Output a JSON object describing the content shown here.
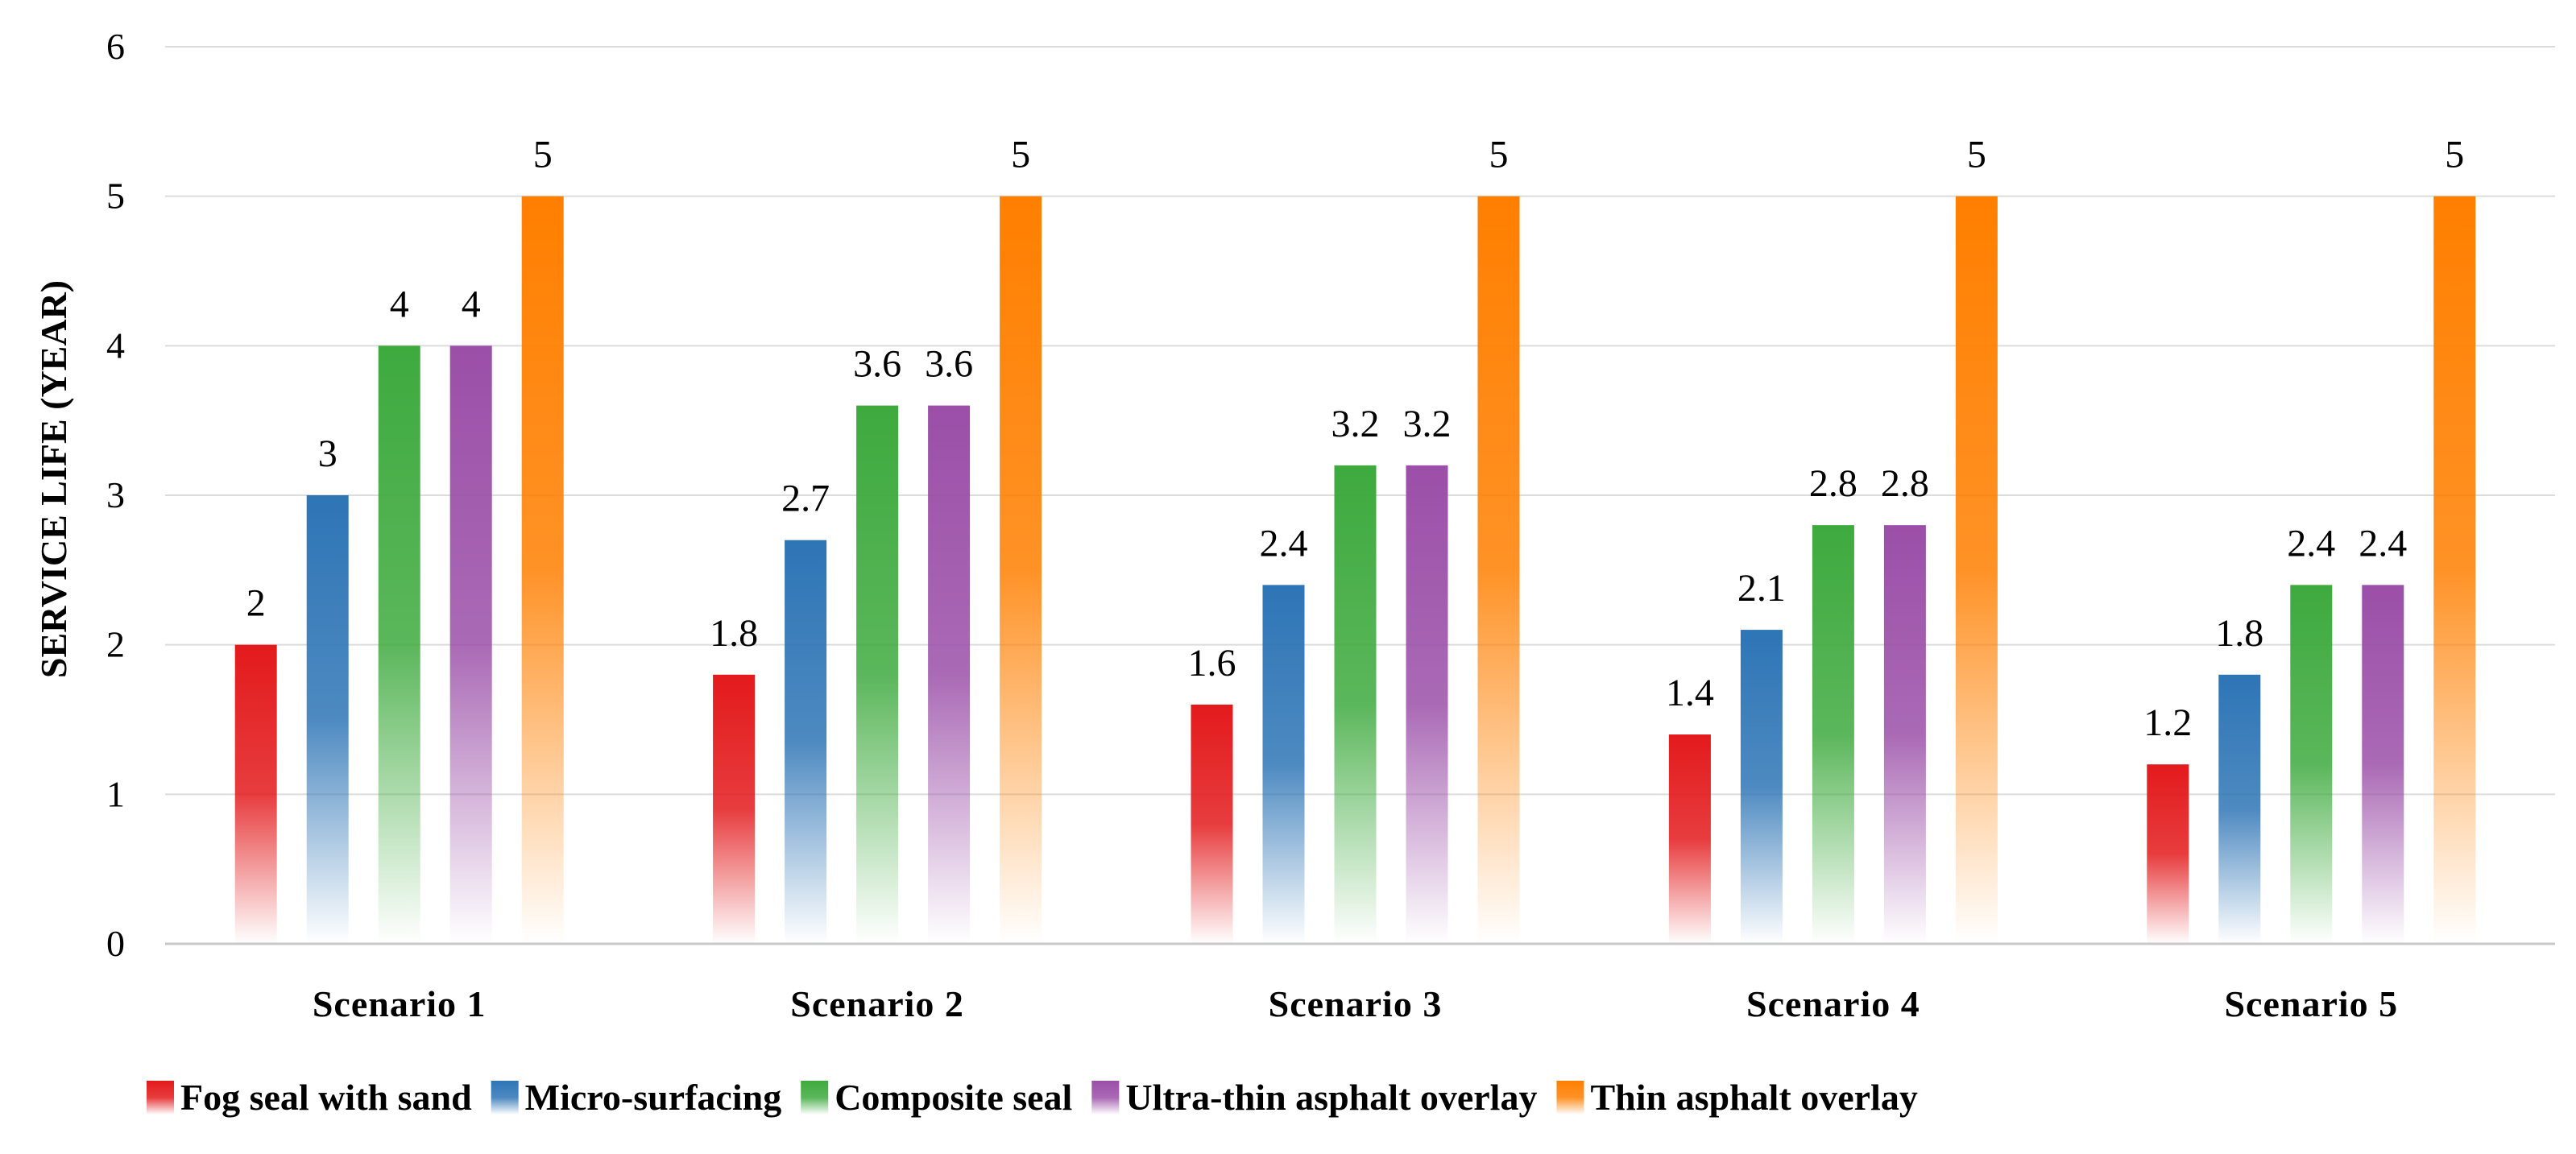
{
  "chart_data": {
    "type": "bar",
    "title": "",
    "xlabel": "",
    "ylabel": "SERVICE LIFE (YEAR)",
    "ylim": [
      0,
      6
    ],
    "yticks": [
      0,
      1,
      2,
      3,
      4,
      5,
      6
    ],
    "grid": true,
    "legend_position": "bottom",
    "categories": [
      "Scenario 1",
      "Scenario 2",
      "Scenario 3",
      "Scenario 4",
      "Scenario 5"
    ],
    "series": [
      {
        "name": "Fog seal with sand",
        "color": "#E31A1C",
        "values": [
          2,
          1.8,
          1.6,
          1.4,
          1.2
        ]
      },
      {
        "name": "Micro-surfacing",
        "color": "#2E75B6",
        "values": [
          3,
          2.7,
          2.4,
          2.1,
          1.8
        ]
      },
      {
        "name": "Composite seal",
        "color": "#3EAA3E",
        "values": [
          4,
          3.6,
          3.2,
          2.8,
          2.4
        ]
      },
      {
        "name": "Ultra-thin asphalt overlay",
        "color": "#9B4FA8",
        "values": [
          4,
          3.6,
          3.2,
          2.8,
          2.4
        ]
      },
      {
        "name": "Thin asphalt overlay",
        "color": "#FF7F00",
        "values": [
          5,
          5,
          5,
          5,
          5
        ]
      }
    ]
  }
}
